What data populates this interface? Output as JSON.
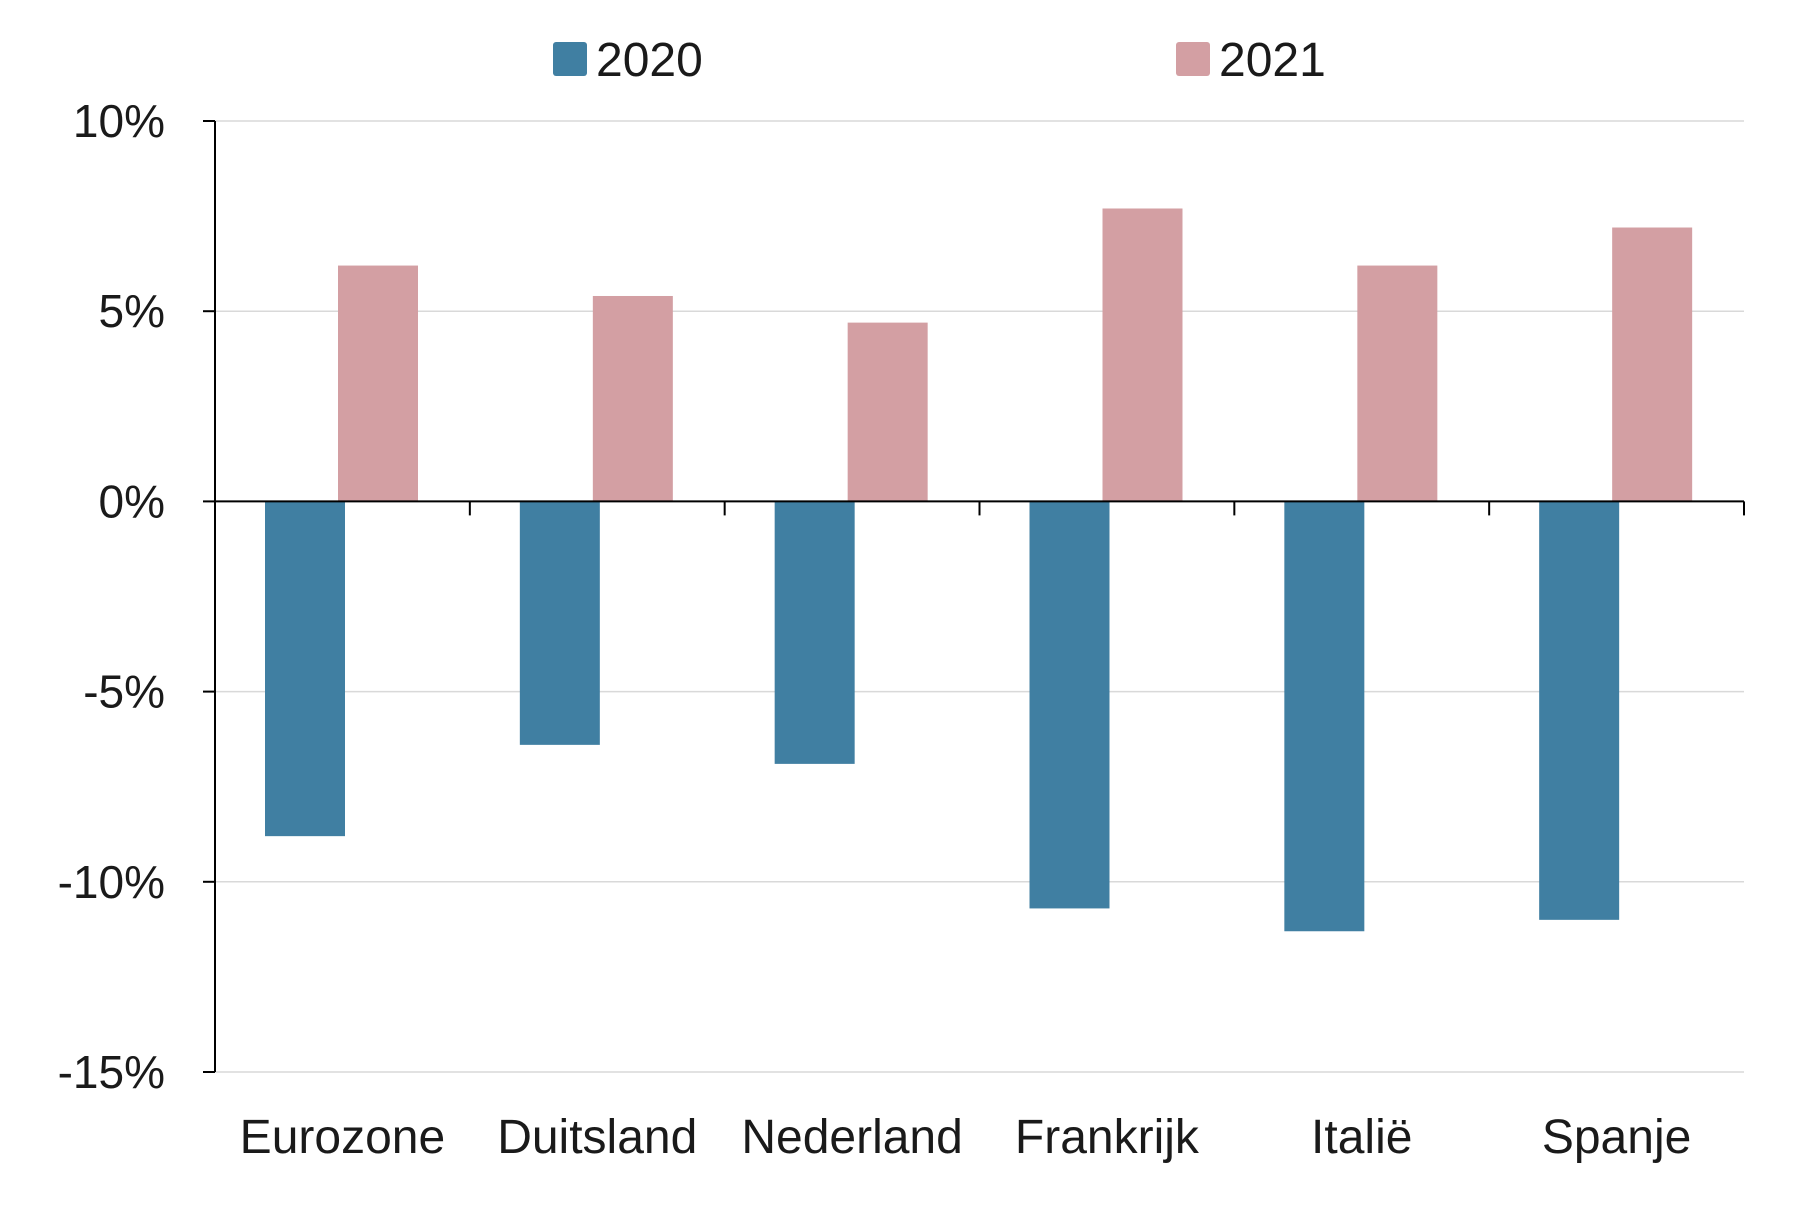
{
  "chart_data": {
    "type": "bar",
    "categories": [
      "Eurozone",
      "Duitsland",
      "Nederland",
      "Frankrijk",
      "Italië",
      "Spanje"
    ],
    "series": [
      {
        "name": "2020",
        "color": "#407fa2",
        "values": [
          -8.8,
          -6.4,
          -6.9,
          -10.7,
          -11.3,
          -11.0
        ]
      },
      {
        "name": "2021",
        "color": "#d39fa3",
        "values": [
          6.2,
          5.4,
          4.7,
          7.7,
          6.2,
          7.2
        ]
      }
    ],
    "y_ticks": [
      10,
      5,
      0,
      -5,
      -10,
      -15
    ],
    "y_tick_labels": [
      "10%",
      "5%",
      "0%",
      "-5%",
      "-10%",
      "-15%"
    ],
    "ylim": [
      -15,
      10
    ],
    "grid": true,
    "legend_position": "top-center",
    "title": "",
    "xlabel": "",
    "ylabel": ""
  }
}
